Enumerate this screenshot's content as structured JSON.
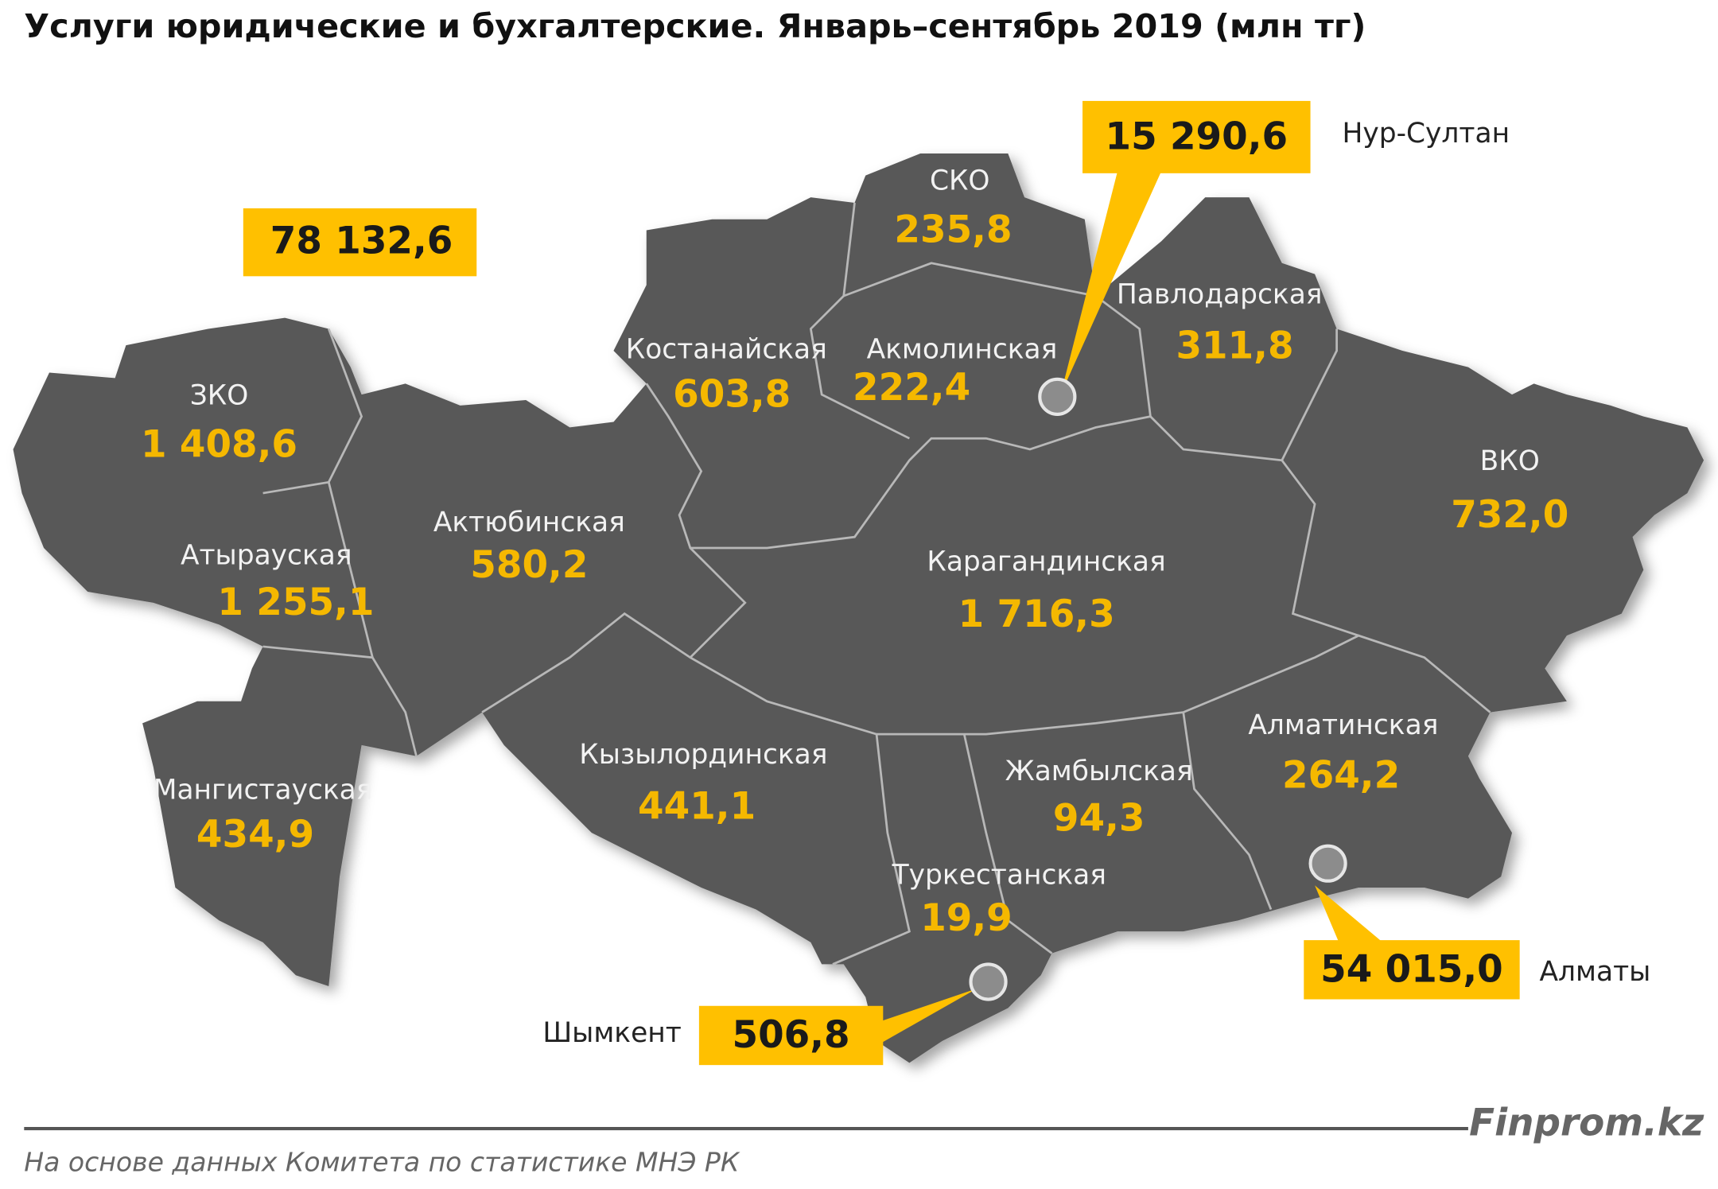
{
  "title": "Услуги юридические и бухгалтерские. Январь–сентябрь 2019 (млн тг)",
  "total": "78 132,6",
  "regions": [
    {
      "name": "ЗКО",
      "value": "1 408,6"
    },
    {
      "name": "Атырауская",
      "value": "1 255,1"
    },
    {
      "name": "Актюбинская",
      "value": "580,2"
    },
    {
      "name": "Мангистауская",
      "value": "434,9"
    },
    {
      "name": "Костанайская",
      "value": "603,8"
    },
    {
      "name": "СКО",
      "value": "235,8"
    },
    {
      "name": "Акмолинская",
      "value": "222,4"
    },
    {
      "name": "Павлодарская",
      "value": "311,8"
    },
    {
      "name": "ВКО",
      "value": "732,0"
    },
    {
      "name": "Карагандинская",
      "value": "1 716,3"
    },
    {
      "name": "Кызылординская",
      "value": "441,1"
    },
    {
      "name": "Жамбылская",
      "value": "94,3"
    },
    {
      "name": "Алматинская",
      "value": "264,2"
    },
    {
      "name": "Туркестанская",
      "value": "19,9"
    }
  ],
  "cities": [
    {
      "name": "Нур-Султан",
      "value": "15 290,6"
    },
    {
      "name": "Алматы",
      "value": "54 015,0"
    },
    {
      "name": "Шымкент",
      "value": "506,8"
    }
  ],
  "brand": "Finprom.kz",
  "source": "На основе данных  Комитета по статистике МНЭ РК"
}
